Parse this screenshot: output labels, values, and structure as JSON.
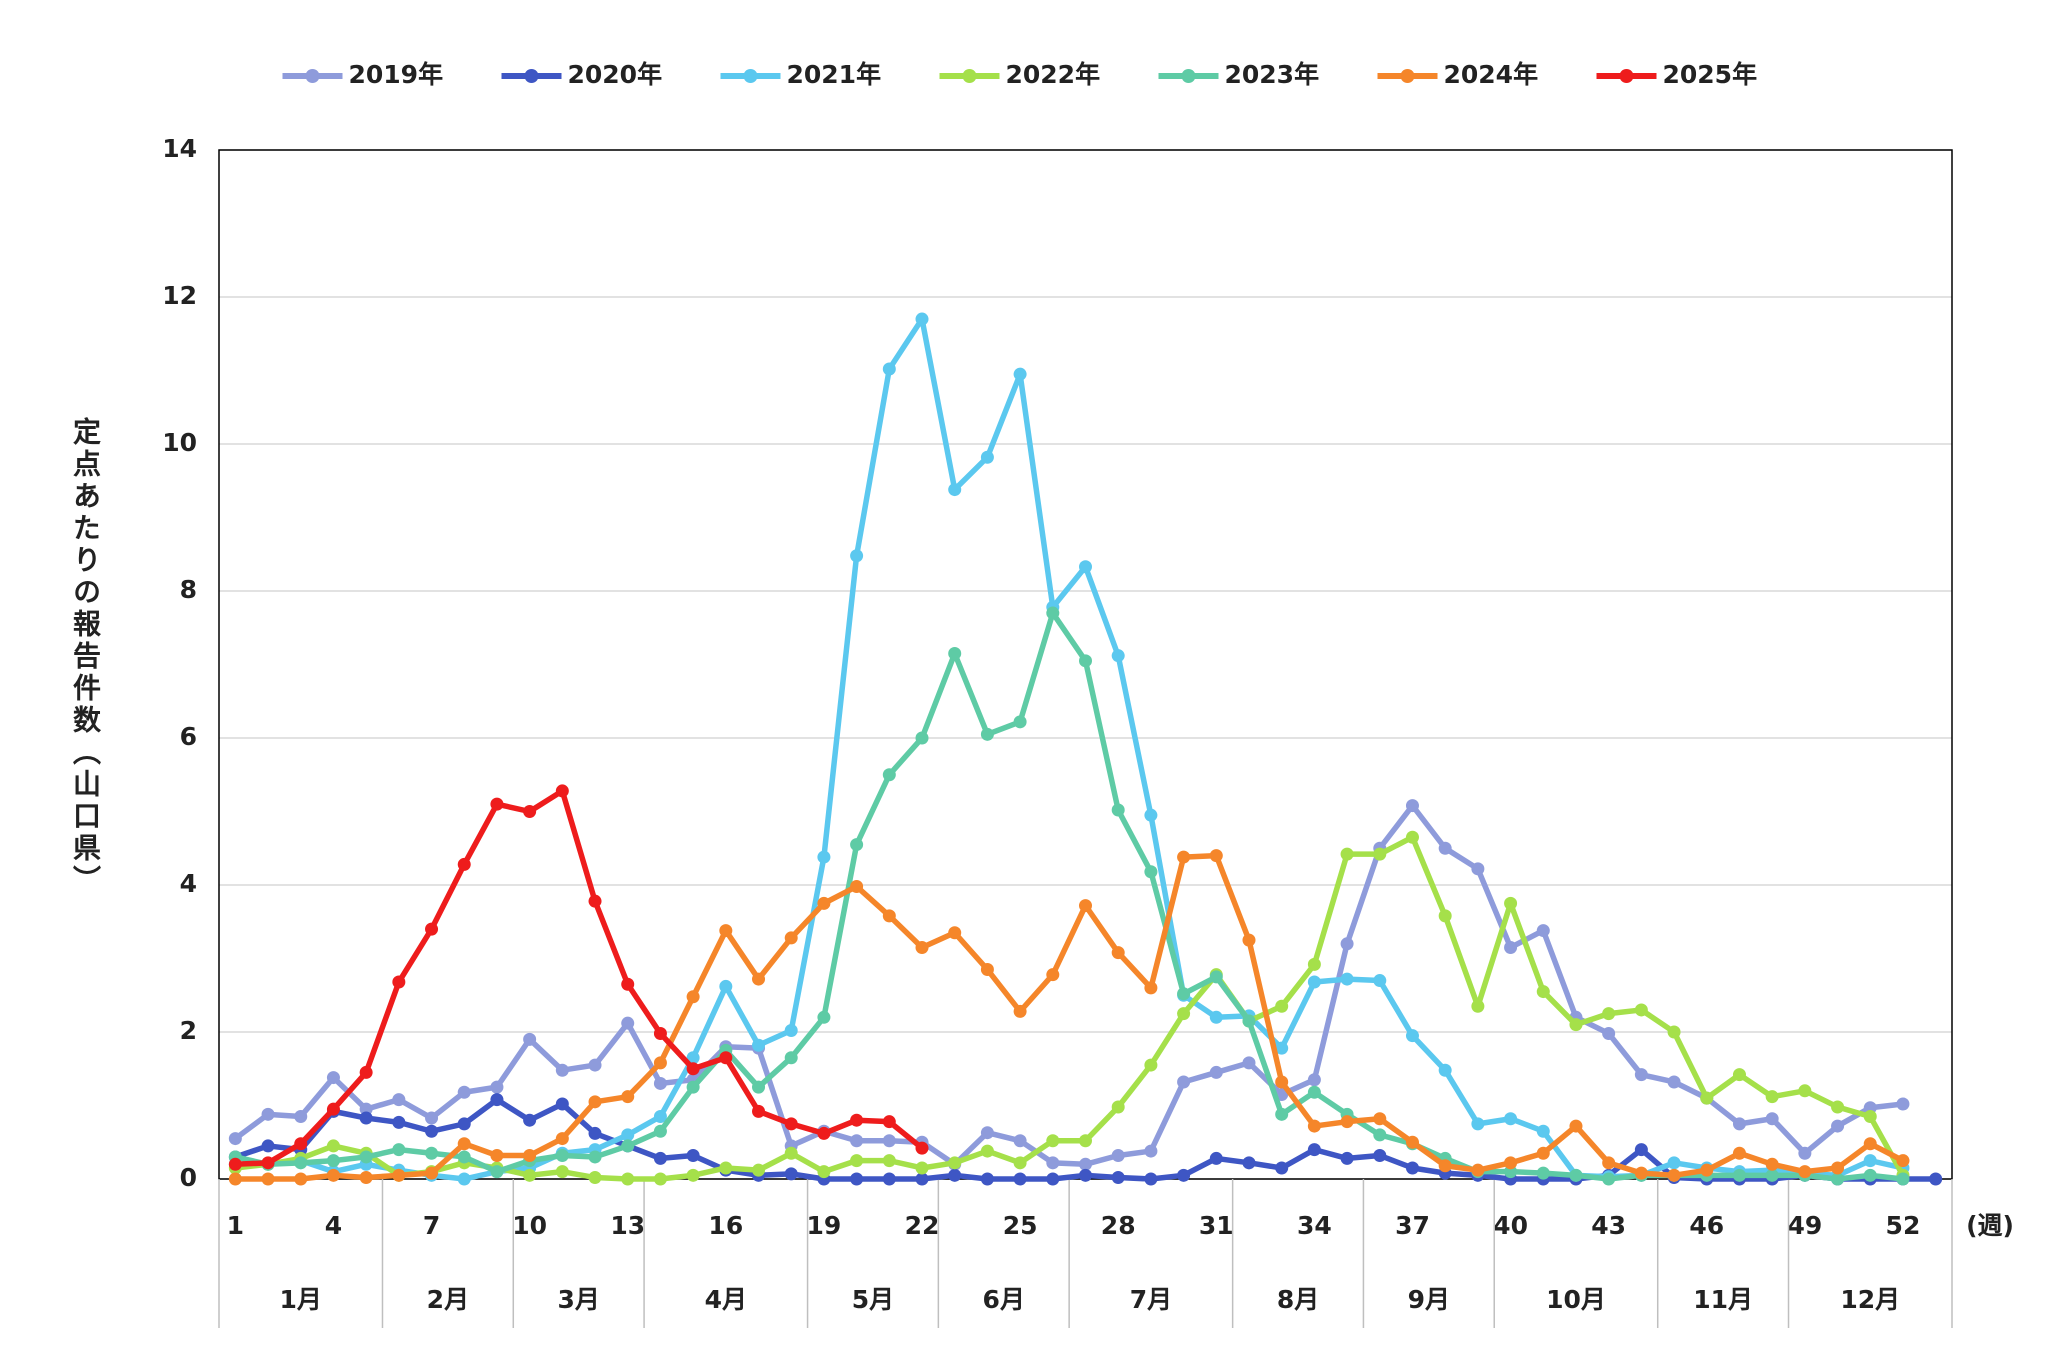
{
  "chart_data": {
    "type": "line",
    "y_label": "定点あたりの報告件数（山口県）",
    "x_unit": "(週)",
    "x": [
      1,
      2,
      3,
      4,
      5,
      6,
      7,
      8,
      9,
      10,
      11,
      12,
      13,
      14,
      15,
      16,
      17,
      18,
      19,
      20,
      21,
      22,
      23,
      24,
      25,
      26,
      27,
      28,
      29,
      30,
      31,
      32,
      33,
      34,
      35,
      36,
      37,
      38,
      39,
      40,
      41,
      42,
      43,
      44,
      45,
      46,
      47,
      48,
      49,
      50,
      51,
      52,
      53
    ],
    "xlim": [
      0.5,
      53.5
    ],
    "xticks": [
      1,
      4,
      7,
      10,
      13,
      16,
      19,
      22,
      25,
      28,
      31,
      34,
      37,
      40,
      43,
      46,
      49,
      52
    ],
    "ylim": [
      0,
      14
    ],
    "yticks": [
      0,
      2,
      4,
      6,
      8,
      10,
      12,
      14
    ],
    "grid": true,
    "legend": "top",
    "months": [
      "1月",
      "2月",
      "3月",
      "4月",
      "5月",
      "6月",
      "7月",
      "8月",
      "9月",
      "10月",
      "11月",
      "12月"
    ],
    "series": [
      {
        "name": "2019年",
        "color": "#8e9bdb",
        "values": [
          0.55,
          0.88,
          0.85,
          1.38,
          0.95,
          1.08,
          0.83,
          1.18,
          1.25,
          1.9,
          1.48,
          1.55,
          2.12,
          1.3,
          1.35,
          1.8,
          1.78,
          0.45,
          0.65,
          0.52,
          0.52,
          0.5,
          0.2,
          0.63,
          0.52,
          0.22,
          0.2,
          0.32,
          0.38,
          1.32,
          1.45,
          1.58,
          1.15,
          1.35,
          3.2,
          4.5,
          5.08,
          4.5,
          4.22,
          3.15,
          3.38,
          2.2,
          1.98,
          1.42,
          1.32,
          1.1,
          0.75,
          0.82,
          0.35,
          0.72,
          0.97,
          1.02,
          null
        ]
      },
      {
        "name": "2020年",
        "color": "#3e56c4",
        "values": [
          0.3,
          0.45,
          0.4,
          0.92,
          0.83,
          0.77,
          0.65,
          0.75,
          1.08,
          0.8,
          1.02,
          0.62,
          0.45,
          0.28,
          0.32,
          0.12,
          0.05,
          0.07,
          0,
          0,
          0,
          0,
          0.05,
          0,
          0,
          0,
          0.05,
          0.02,
          0,
          0.05,
          0.28,
          0.22,
          0.15,
          0.4,
          0.28,
          0.32,
          0.15,
          0.08,
          0.05,
          0,
          0,
          0,
          0.05,
          0.4,
          0.02,
          0,
          0,
          0,
          0.05,
          0,
          0,
          0,
          0
        ]
      },
      {
        "name": "2021年",
        "color": "#5bc8ef",
        "values": [
          0.2,
          0.2,
          0.25,
          0.1,
          0.2,
          0.12,
          0.05,
          0,
          0.1,
          0.15,
          0.35,
          0.4,
          0.6,
          0.85,
          1.65,
          2.62,
          1.82,
          2.02,
          4.38,
          8.48,
          11.02,
          11.7,
          9.38,
          9.82,
          10.95,
          7.78,
          8.33,
          7.12,
          4.95,
          2.5,
          2.2,
          2.22,
          1.78,
          2.68,
          2.72,
          2.7,
          1.95,
          1.48,
          0.75,
          0.82,
          0.65,
          0.05,
          0.03,
          0.05,
          0.22,
          0.15,
          0.1,
          0.12,
          0.08,
          0.05,
          0.25,
          0.15,
          null
        ]
      },
      {
        "name": "2022年",
        "color": "#a5e04a",
        "values": [
          0.15,
          0.2,
          0.28,
          0.45,
          0.35,
          0.05,
          0.1,
          0.22,
          0.15,
          0.05,
          0.1,
          0.02,
          0,
          0,
          0.05,
          0.15,
          0.12,
          0.35,
          0.1,
          0.25,
          0.25,
          0.15,
          0.22,
          0.38,
          0.22,
          0.52,
          0.52,
          0.98,
          1.55,
          2.25,
          2.78,
          2.15,
          2.35,
          2.92,
          4.42,
          4.42,
          4.65,
          3.58,
          2.35,
          3.75,
          2.55,
          2.1,
          2.25,
          2.3,
          2.0,
          1.1,
          1.42,
          1.12,
          1.2,
          0.98,
          0.85,
          0.05,
          null
        ]
      },
      {
        "name": "2023年",
        "color": "#5ecba5",
        "values": [
          0.3,
          0.2,
          0.22,
          0.25,
          0.3,
          0.4,
          0.35,
          0.3,
          0.1,
          0.25,
          0.32,
          0.3,
          0.45,
          0.65,
          1.25,
          1.75,
          1.25,
          1.65,
          2.2,
          4.55,
          5.5,
          6.0,
          7.15,
          6.05,
          6.22,
          7.7,
          7.05,
          5.02,
          4.18,
          2.52,
          2.75,
          2.15,
          0.88,
          1.18,
          0.88,
          0.6,
          0.48,
          0.28,
          0.1,
          0.1,
          0.08,
          0.05,
          0,
          0.05,
          0.05,
          0.05,
          0.05,
          0.05,
          0.05,
          0,
          0.05,
          0,
          null
        ]
      },
      {
        "name": "2024年",
        "color": "#f5862a",
        "values": [
          0,
          0,
          0,
          0.05,
          0.02,
          0.05,
          0.08,
          0.48,
          0.32,
          0.32,
          0.55,
          1.05,
          1.12,
          1.58,
          2.48,
          3.38,
          2.72,
          3.28,
          3.75,
          3.98,
          3.58,
          3.15,
          3.35,
          2.85,
          2.28,
          2.78,
          3.72,
          3.08,
          2.6,
          4.38,
          4.4,
          3.25,
          1.32,
          0.72,
          0.78,
          0.82,
          0.5,
          0.18,
          0.12,
          0.22,
          0.35,
          0.72,
          0.22,
          0.08,
          0.05,
          0.12,
          0.35,
          0.2,
          0.1,
          0.15,
          0.48,
          0.25,
          null
        ]
      },
      {
        "name": "2025年",
        "color": "#ee1c1c",
        "values": [
          0.2,
          0.22,
          0.48,
          0.95,
          1.45,
          2.68,
          3.4,
          4.28,
          5.1,
          5.0,
          5.28,
          3.78,
          2.65,
          1.98,
          1.5,
          1.65,
          0.92,
          0.75,
          0.62,
          0.8,
          0.78,
          0.42,
          null,
          null,
          null,
          null,
          null,
          null,
          null,
          null,
          null,
          null,
          null,
          null,
          null,
          null,
          null,
          null,
          null,
          null,
          null,
          null,
          null,
          null,
          null,
          null,
          null,
          null,
          null,
          null,
          null,
          null,
          null
        ]
      }
    ]
  }
}
